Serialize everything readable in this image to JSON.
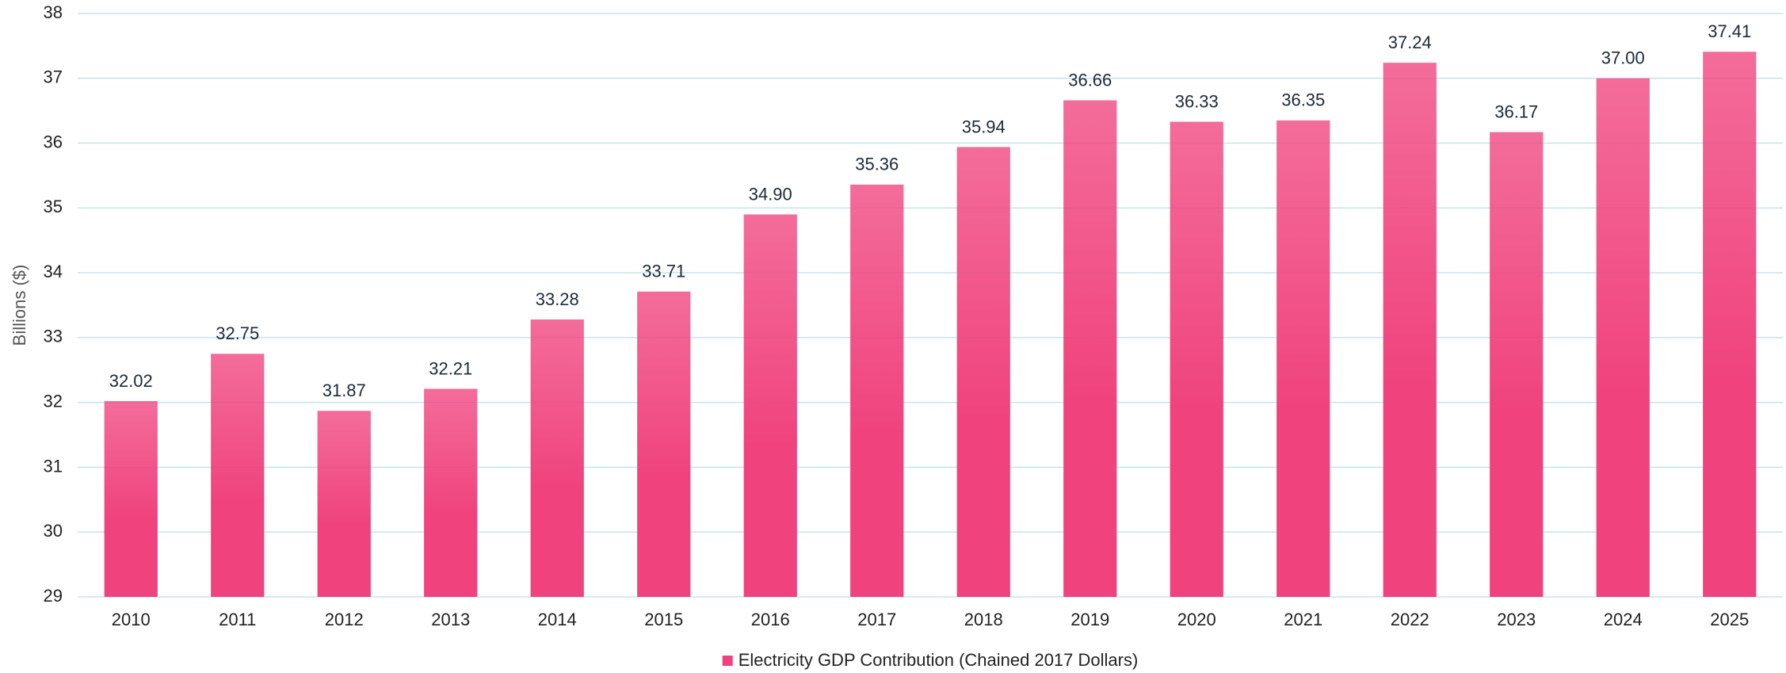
{
  "chart_data": {
    "type": "bar",
    "y_axis_label": "Billions ($)",
    "categories": [
      "2010",
      "2011",
      "2012",
      "2013",
      "2014",
      "2015",
      "2016",
      "2017",
      "2018",
      "2019",
      "2020",
      "2021",
      "2022",
      "2023",
      "2024",
      "2025"
    ],
    "series": [
      {
        "name": "Electricity GDP Contribution (Chained 2017 Dollars)",
        "color": "#f0437d",
        "values": [
          32.02,
          32.75,
          31.87,
          32.21,
          33.28,
          33.71,
          34.9,
          35.36,
          35.94,
          36.66,
          36.33,
          36.35,
          37.24,
          36.17,
          37.0,
          37.41
        ],
        "value_labels": [
          "32.02",
          "32.75",
          "31.87",
          "32.21",
          "33.28",
          "33.71",
          "34.90",
          "35.36",
          "35.94",
          "36.66",
          "36.33",
          "36.35",
          "37.24",
          "36.17",
          "37.00",
          "37.41"
        ]
      }
    ],
    "ylim": [
      29,
      38
    ],
    "yticks": [
      29,
      30,
      31,
      32,
      33,
      34,
      35,
      36,
      37,
      38
    ],
    "grid": true,
    "legend": "bottom"
  }
}
